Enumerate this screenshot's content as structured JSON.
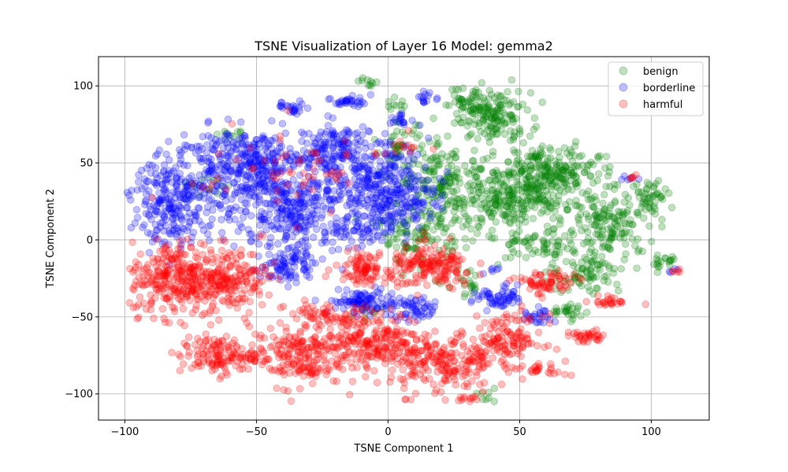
{
  "chart_data": {
    "type": "scatter",
    "title": "TSNE Visualization of Layer 16 Model: gemma2",
    "xlabel": "TSNE Component 1",
    "ylabel": "TSNE Component 2",
    "xlim": [
      -110,
      122
    ],
    "ylim": [
      -117,
      119
    ],
    "xticks": [
      -100,
      -50,
      0,
      50,
      100
    ],
    "yticks": [
      -100,
      -50,
      0,
      50,
      100
    ],
    "xtick_labels": [
      "−100",
      "−50",
      "0",
      "50",
      "100"
    ],
    "ytick_labels": [
      "−100",
      "−50",
      "0",
      "50",
      "100"
    ],
    "grid": true,
    "legend_position": "top-right",
    "marker_alpha": 0.25,
    "series": [
      {
        "name": "benign",
        "color": "#008000",
        "clusters": [
          {
            "x": 40,
            "y": 80,
            "sx": 7,
            "sy": 8,
            "n": 160
          },
          {
            "x": 30,
            "y": 92,
            "sx": 4,
            "sy": 5,
            "n": 30
          },
          {
            "x": 60,
            "y": 45,
            "sx": 10,
            "sy": 8,
            "n": 220
          },
          {
            "x": 45,
            "y": 25,
            "sx": 13,
            "sy": 10,
            "n": 280
          },
          {
            "x": 85,
            "y": 10,
            "sx": 9,
            "sy": 11,
            "n": 160
          },
          {
            "x": 100,
            "y": 30,
            "sx": 4,
            "sy": 5,
            "n": 40
          },
          {
            "x": 75,
            "y": -20,
            "sx": 7,
            "sy": 8,
            "n": 80
          },
          {
            "x": 20,
            "y": 40,
            "sx": 8,
            "sy": 10,
            "n": 120
          },
          {
            "x": 12,
            "y": 5,
            "sx": 8,
            "sy": 10,
            "n": 120
          },
          {
            "x": 5,
            "y": 60,
            "sx": 4,
            "sy": 8,
            "n": 40
          },
          {
            "x": -8,
            "y": 104,
            "sx": 2,
            "sy": 2,
            "n": 12
          },
          {
            "x": 3,
            "y": 87,
            "sx": 2,
            "sy": 2,
            "n": 10
          },
          {
            "x": 68,
            "y": -47,
            "sx": 4,
            "sy": 3,
            "n": 25
          },
          {
            "x": 30,
            "y": -30,
            "sx": 4,
            "sy": 4,
            "n": 20
          },
          {
            "x": 38,
            "y": -103,
            "sx": 2,
            "sy": 2,
            "n": 8
          },
          {
            "x": 105,
            "y": -15,
            "sx": 3,
            "sy": 3,
            "n": 18
          },
          {
            "x": -70,
            "y": 35,
            "sx": 6,
            "sy": 6,
            "n": 14
          },
          {
            "x": -58,
            "y": 68,
            "sx": 3,
            "sy": 2,
            "n": 10
          },
          {
            "x": -8,
            "y": -45,
            "sx": 3,
            "sy": 3,
            "n": 10
          },
          {
            "x": 55,
            "y": -5,
            "sx": 8,
            "sy": 6,
            "n": 60
          }
        ]
      },
      {
        "name": "borderline",
        "color": "#0000ff",
        "clusters": [
          {
            "x": -80,
            "y": 25,
            "sx": 9,
            "sy": 14,
            "n": 260
          },
          {
            "x": -55,
            "y": 50,
            "sx": 12,
            "sy": 11,
            "n": 330
          },
          {
            "x": -35,
            "y": 20,
            "sx": 12,
            "sy": 14,
            "n": 330
          },
          {
            "x": -20,
            "y": 60,
            "sx": 7,
            "sy": 8,
            "n": 130
          },
          {
            "x": -5,
            "y": 40,
            "sx": 10,
            "sy": 12,
            "n": 210
          },
          {
            "x": 5,
            "y": 25,
            "sx": 7,
            "sy": 8,
            "n": 110
          },
          {
            "x": -38,
            "y": -15,
            "sx": 5,
            "sy": 7,
            "n": 90
          },
          {
            "x": -15,
            "y": 90,
            "sx": 3,
            "sy": 2,
            "n": 30
          },
          {
            "x": -36,
            "y": 86,
            "sx": 3,
            "sy": 2,
            "n": 24
          },
          {
            "x": 15,
            "y": 92,
            "sx": 2,
            "sy": 2,
            "n": 14
          },
          {
            "x": 5,
            "y": 78,
            "sx": 3,
            "sy": 2,
            "n": 18
          },
          {
            "x": -10,
            "y": -40,
            "sx": 6,
            "sy": 4,
            "n": 90
          },
          {
            "x": 10,
            "y": -45,
            "sx": 5,
            "sy": 4,
            "n": 60
          },
          {
            "x": 42,
            "y": -38,
            "sx": 5,
            "sy": 4,
            "n": 60
          },
          {
            "x": 57,
            "y": -50,
            "sx": 3,
            "sy": 3,
            "n": 25
          },
          {
            "x": -10,
            "y": 5,
            "sx": 6,
            "sy": 6,
            "n": 60
          },
          {
            "x": 40,
            "y": -20,
            "sx": 2,
            "sy": 2,
            "n": 6
          },
          {
            "x": 90,
            "y": 40,
            "sx": 2,
            "sy": 1,
            "n": 6
          },
          {
            "x": 108,
            "y": -20,
            "sx": 1,
            "sy": 1,
            "n": 4
          }
        ]
      },
      {
        "name": "harmful",
        "color": "#ff0000",
        "clusters": [
          {
            "x": -80,
            "y": -25,
            "sx": 9,
            "sy": 12,
            "n": 300
          },
          {
            "x": -60,
            "y": -25,
            "sx": 7,
            "sy": 10,
            "n": 170
          },
          {
            "x": -65,
            "y": -75,
            "sx": 7,
            "sy": 6,
            "n": 130
          },
          {
            "x": -35,
            "y": -75,
            "sx": 9,
            "sy": 10,
            "n": 210
          },
          {
            "x": -5,
            "y": -65,
            "sx": 9,
            "sy": 9,
            "n": 210
          },
          {
            "x": 20,
            "y": -80,
            "sx": 10,
            "sy": 10,
            "n": 210
          },
          {
            "x": 17,
            "y": -18,
            "sx": 8,
            "sy": 7,
            "n": 170
          },
          {
            "x": -10,
            "y": -18,
            "sx": 5,
            "sy": 5,
            "n": 90
          },
          {
            "x": 45,
            "y": -65,
            "sx": 7,
            "sy": 8,
            "n": 130
          },
          {
            "x": 60,
            "y": -28,
            "sx": 6,
            "sy": 4,
            "n": 70
          },
          {
            "x": 75,
            "y": -63,
            "sx": 4,
            "sy": 2,
            "n": 35
          },
          {
            "x": 85,
            "y": -40,
            "sx": 3,
            "sy": 2,
            "n": 25
          },
          {
            "x": 60,
            "y": -85,
            "sx": 4,
            "sy": 2,
            "n": 25
          },
          {
            "x": 30,
            "y": -103,
            "sx": 3,
            "sy": 1,
            "n": 12
          },
          {
            "x": -40,
            "y": 45,
            "sx": 18,
            "sy": 15,
            "n": 60
          },
          {
            "x": 7,
            "y": 60,
            "sx": 4,
            "sy": 4,
            "n": 12
          },
          {
            "x": 110,
            "y": -20,
            "sx": 1,
            "sy": 1,
            "n": 5
          },
          {
            "x": 93,
            "y": 40,
            "sx": 1,
            "sy": 1,
            "n": 5
          },
          {
            "x": -25,
            "y": -50,
            "sx": 7,
            "sy": 5,
            "n": 60
          }
        ]
      }
    ]
  }
}
